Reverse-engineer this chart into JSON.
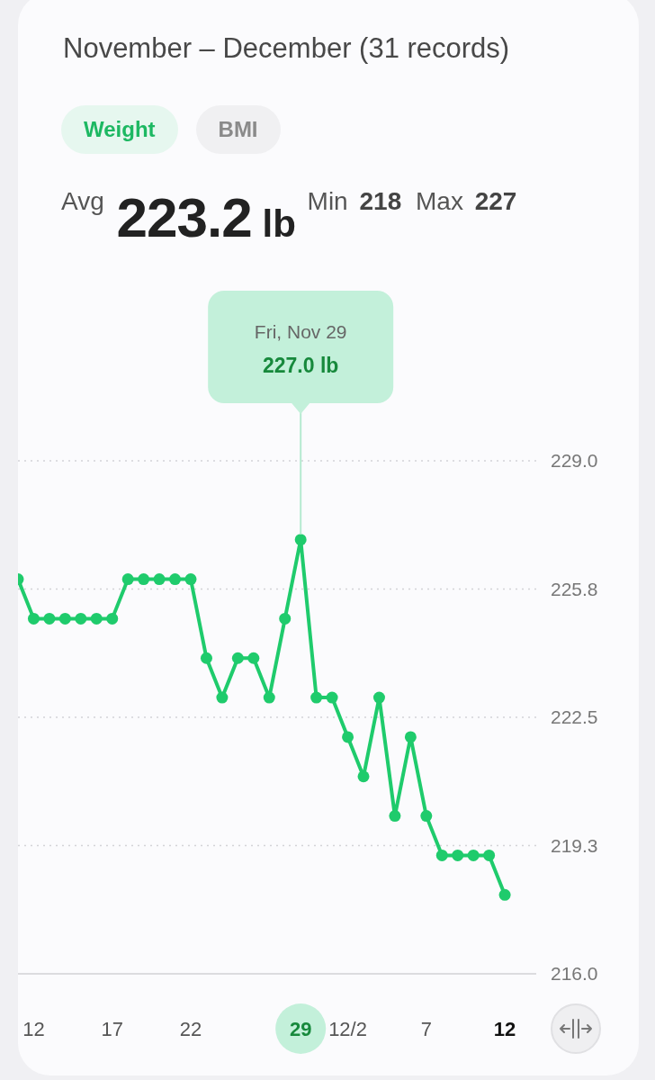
{
  "chart_data": {
    "type": "line",
    "title": "November – December (31 records)",
    "subtitle": "Avg 223.2 lb Min 218 Max 227",
    "annotations": [
      {
        "text": "Fri, Nov 29\n227.0 lb",
        "x": "--11-29",
        "y": 227
      },
      "Weight",
      "BMI"
    ],
    "x": [
      "--11-11",
      "--11-12",
      "--11-13",
      "--11-14",
      "--11-15",
      "--11-16",
      "--11-17",
      "--11-18",
      "--11-19",
      "--11-20",
      "--11-21",
      "--11-22",
      "--11-23",
      "--11-24",
      "--11-25",
      "--11-26",
      "--11-27",
      "--11-28",
      "--11-29",
      "--11-30",
      "--12-01",
      "--12-02",
      "--12-03",
      "--12-04",
      "--12-05",
      "--12-06",
      "--12-07",
      "--12-08",
      "--12-09",
      "--12-10",
      "--12-11",
      "--12-12"
    ],
    "series": [
      {
        "color": "#1fcb6c",
        "values": [
          226,
          225,
          225,
          225,
          225,
          225,
          225,
          226,
          226,
          226,
          226,
          226,
          224,
          223,
          224,
          224,
          223,
          225,
          227,
          223,
          223,
          222,
          221,
          223,
          220,
          222,
          220,
          219,
          219,
          219,
          219,
          218
        ]
      }
    ],
    "xlim": [
      "--11-11",
      "--12-14"
    ],
    "xticks": [
      {
        "value": "--11-12",
        "label": "12"
      },
      {
        "value": "--11-17",
        "label": "17"
      },
      {
        "value": "--11-22",
        "label": "22"
      },
      {
        "value": "--11-29",
        "label": "29"
      },
      {
        "value": "--12-02",
        "label": "12/2"
      },
      {
        "value": "--12-07",
        "label": "7"
      },
      {
        "value": "--12-12",
        "label": "12"
      }
    ],
    "ylim": [
      216,
      229
    ],
    "yticks": [
      {
        "value": 216,
        "label": "216.0"
      },
      {
        "value": 219.25,
        "label": "219.3"
      },
      {
        "value": 222.5,
        "label": "222.5"
      },
      {
        "value": 225.75,
        "label": "225.8"
      },
      {
        "value": 229,
        "label": "229.0"
      }
    ],
    "grid": "y",
    "marker": "circle",
    "line_style": "solid"
  }
}
